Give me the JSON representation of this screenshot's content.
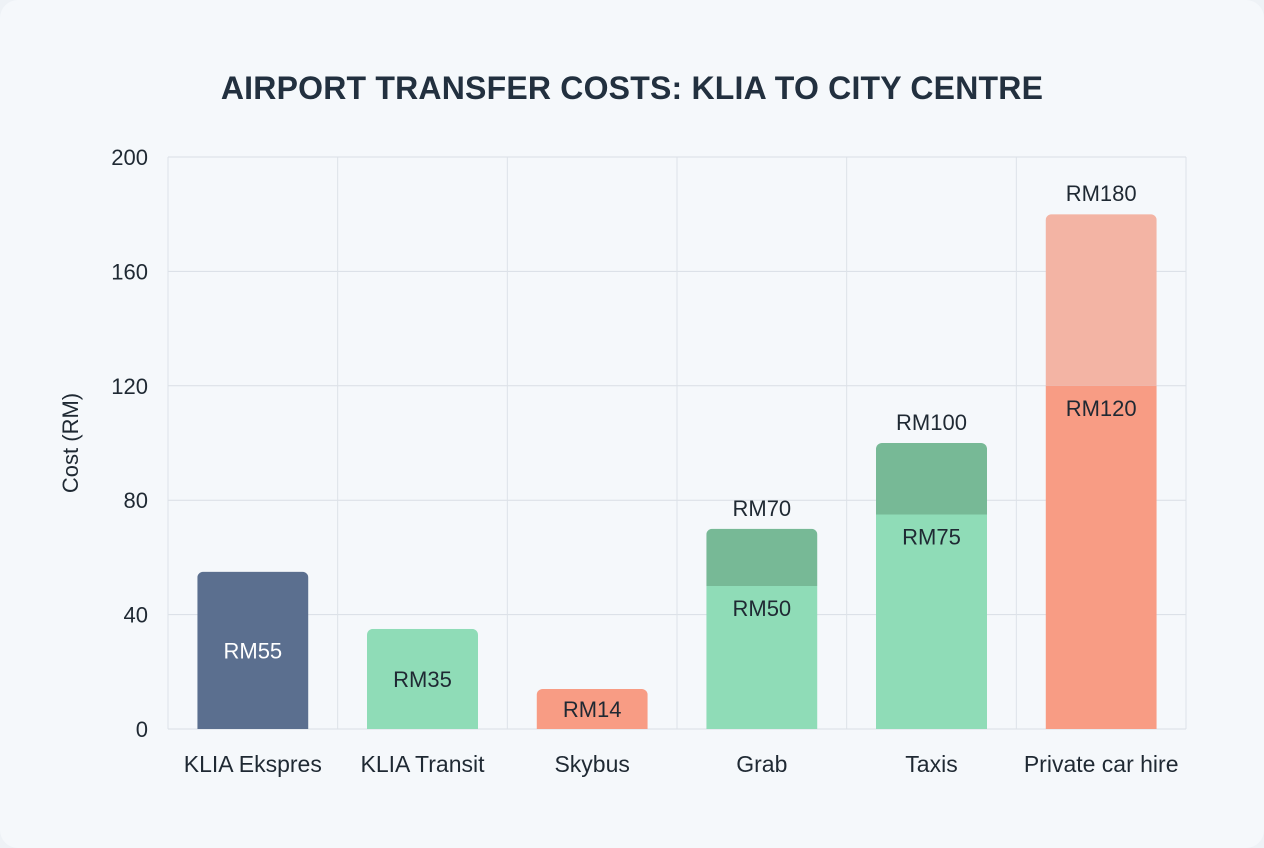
{
  "chart_data": {
    "type": "bar",
    "title": "AIRPORT TRANSFER COSTS: KLIA TO CITY CENTRE",
    "ylabel": "Cost (RM)",
    "xlabel": "",
    "ylim": [
      0,
      200
    ],
    "yticks": [
      0,
      40,
      80,
      120,
      160,
      200
    ],
    "grid": true,
    "categories": [
      "KLIA Ekspres",
      "KLIA Transit",
      "Skybus",
      "Grab",
      "Taxis",
      "Private car hire"
    ],
    "bars": [
      {
        "category": "KLIA Ekspres",
        "low": 55,
        "high": null,
        "low_label": "RM55",
        "high_label": null,
        "color": "#5b6f8f",
        "range_color": null,
        "label_color": "#ffffff"
      },
      {
        "category": "KLIA Transit",
        "low": 35,
        "high": null,
        "low_label": "RM35",
        "high_label": null,
        "color": "#8fdcb7",
        "range_color": null,
        "label_color": "#1f2933"
      },
      {
        "category": "Skybus",
        "low": 14,
        "high": null,
        "low_label": "RM14",
        "high_label": null,
        "color": "#f89c84",
        "range_color": null,
        "label_color": "#1f2933"
      },
      {
        "category": "Grab",
        "low": 50,
        "high": 70,
        "low_label": "RM50",
        "high_label": "RM70",
        "color": "#8fdcb7",
        "range_color": "#77b996",
        "label_color": "#1f2933"
      },
      {
        "category": "Taxis",
        "low": 75,
        "high": 100,
        "low_label": "RM75",
        "high_label": "RM100",
        "color": "#8fdcb7",
        "range_color": "#77b996",
        "label_color": "#1f2933"
      },
      {
        "category": "Private car hire",
        "low": 120,
        "high": 180,
        "low_label": "RM120",
        "high_label": "RM180",
        "color": "#f89c84",
        "range_color": "#f3b4a4",
        "label_color": "#1f2933"
      }
    ]
  }
}
